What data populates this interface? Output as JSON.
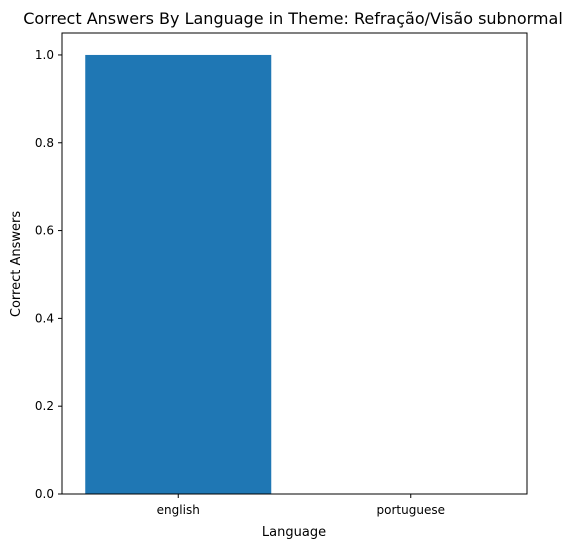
{
  "chart_data": {
    "type": "bar",
    "title": "Correct Answers By Language in Theme: Refração/Visão subnormal",
    "xlabel": "Language",
    "ylabel": "Correct Answers",
    "categories": [
      "english",
      "portuguese"
    ],
    "values": [
      1.0,
      0.0
    ],
    "ylim": [
      0,
      1.05
    ],
    "yticks": [
      "0.0",
      "0.2",
      "0.4",
      "0.6",
      "0.8",
      "1.0"
    ],
    "bar_color": "#1f77b4",
    "grid": false
  }
}
